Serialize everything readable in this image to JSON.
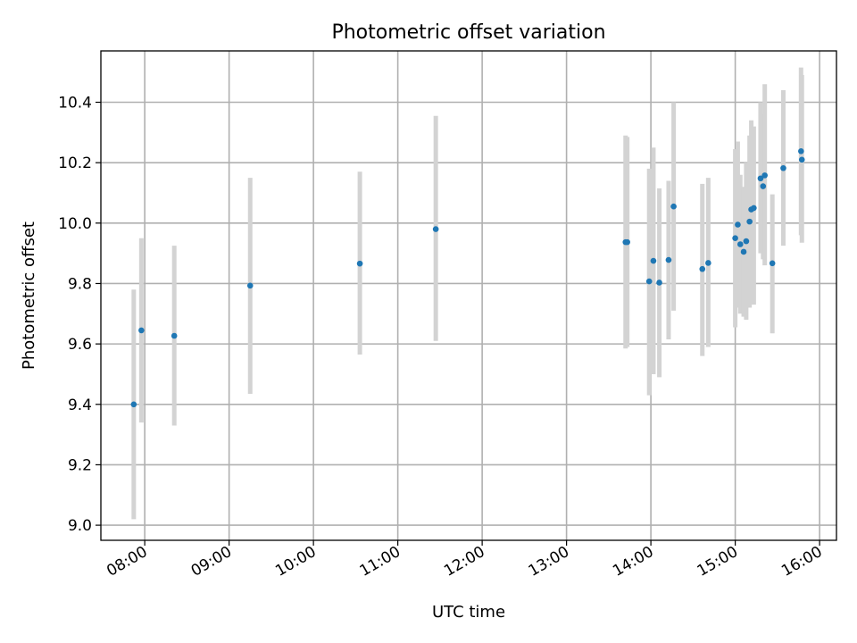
{
  "chart_data": {
    "type": "scatter",
    "title": "Photometric offset variation",
    "xlabel": "UTC time",
    "ylabel": "Photometric offset",
    "x_unit": "hours (UTC)",
    "xlim": [
      7.48,
      16.2
    ],
    "ylim": [
      8.95,
      10.57
    ],
    "xticks": [
      {
        "value": 8,
        "label": "08:00"
      },
      {
        "value": 9,
        "label": "09:00"
      },
      {
        "value": 10,
        "label": "10:00"
      },
      {
        "value": 11,
        "label": "11:00"
      },
      {
        "value": 12,
        "label": "12:00"
      },
      {
        "value": 13,
        "label": "13:00"
      },
      {
        "value": 14,
        "label": "14:00"
      },
      {
        "value": 15,
        "label": "15:00"
      },
      {
        "value": 16,
        "label": "16:00"
      }
    ],
    "yticks": [
      {
        "value": 9.0,
        "label": "9.0"
      },
      {
        "value": 9.2,
        "label": "9.2"
      },
      {
        "value": 9.4,
        "label": "9.4"
      },
      {
        "value": 9.6,
        "label": "9.6"
      },
      {
        "value": 9.8,
        "label": "9.8"
      },
      {
        "value": 10.0,
        "label": "10.0"
      },
      {
        "value": 10.2,
        "label": "10.2"
      },
      {
        "value": 10.4,
        "label": "10.4"
      }
    ],
    "grid": true,
    "colors": {
      "point": "#1f77b4",
      "errorbar": "#d3d3d3",
      "grid": "#b0b0b0"
    },
    "series": [
      {
        "name": "offset",
        "points": [
          {
            "x": 7.87,
            "y": 9.4,
            "lo": 9.02,
            "hi": 9.78
          },
          {
            "x": 7.96,
            "y": 9.645,
            "lo": 9.34,
            "hi": 9.95
          },
          {
            "x": 8.35,
            "y": 9.627,
            "lo": 9.33,
            "hi": 9.925
          },
          {
            "x": 9.25,
            "y": 9.793,
            "lo": 9.435,
            "hi": 10.15
          },
          {
            "x": 10.55,
            "y": 9.866,
            "lo": 9.565,
            "hi": 10.17
          },
          {
            "x": 11.45,
            "y": 9.98,
            "lo": 9.61,
            "hi": 10.355
          },
          {
            "x": 13.7,
            "y": 9.937,
            "lo": 9.585,
            "hi": 10.29
          },
          {
            "x": 13.72,
            "y": 9.937,
            "lo": 9.59,
            "hi": 10.285
          },
          {
            "x": 13.98,
            "y": 9.807,
            "lo": 9.43,
            "hi": 10.18
          },
          {
            "x": 14.03,
            "y": 9.875,
            "lo": 9.5,
            "hi": 10.25
          },
          {
            "x": 14.1,
            "y": 9.803,
            "lo": 9.49,
            "hi": 10.115
          },
          {
            "x": 14.21,
            "y": 9.878,
            "lo": 9.615,
            "hi": 10.14
          },
          {
            "x": 14.27,
            "y": 10.055,
            "lo": 9.71,
            "hi": 10.4
          },
          {
            "x": 14.61,
            "y": 9.848,
            "lo": 9.56,
            "hi": 10.13
          },
          {
            "x": 14.68,
            "y": 9.868,
            "lo": 9.59,
            "hi": 10.15
          },
          {
            "x": 15.0,
            "y": 9.95,
            "lo": 9.655,
            "hi": 10.245
          },
          {
            "x": 15.03,
            "y": 9.995,
            "lo": 9.72,
            "hi": 10.27
          },
          {
            "x": 15.06,
            "y": 9.93,
            "lo": 9.7,
            "hi": 10.16
          },
          {
            "x": 15.1,
            "y": 9.905,
            "lo": 9.69,
            "hi": 10.12
          },
          {
            "x": 15.13,
            "y": 9.94,
            "lo": 9.68,
            "hi": 10.2
          },
          {
            "x": 15.17,
            "y": 10.005,
            "lo": 9.72,
            "hi": 10.29
          },
          {
            "x": 15.19,
            "y": 10.045,
            "lo": 9.75,
            "hi": 10.34
          },
          {
            "x": 15.22,
            "y": 10.05,
            "lo": 9.73,
            "hi": 10.32
          },
          {
            "x": 15.3,
            "y": 10.148,
            "lo": 9.9,
            "hi": 10.4
          },
          {
            "x": 15.33,
            "y": 10.122,
            "lo": 9.88,
            "hi": 10.36
          },
          {
            "x": 15.35,
            "y": 10.158,
            "lo": 9.86,
            "hi": 10.46
          },
          {
            "x": 15.44,
            "y": 9.867,
            "lo": 9.635,
            "hi": 10.095
          },
          {
            "x": 15.57,
            "y": 10.182,
            "lo": 9.925,
            "hi": 10.44
          },
          {
            "x": 15.78,
            "y": 10.238,
            "lo": 9.96,
            "hi": 10.515
          },
          {
            "x": 15.79,
            "y": 10.21,
            "lo": 9.935,
            "hi": 10.49
          }
        ]
      }
    ]
  }
}
